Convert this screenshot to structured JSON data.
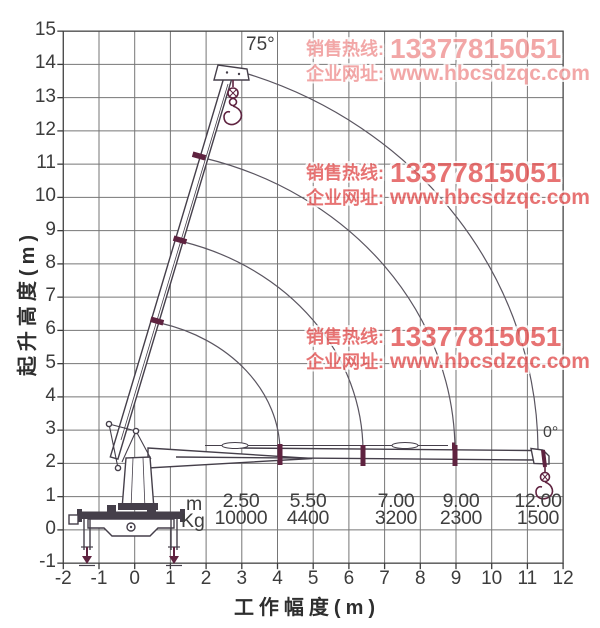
{
  "chart_data": {
    "type": "table",
    "title": "truck-mounted crane lifting capacity chart",
    "xlabel": "工作幅度(m)",
    "ylabel": "起升高度(m)",
    "xlim": [
      -2,
      12
    ],
    "ylim": [
      -1,
      15
    ],
    "x_ticks": [
      -2,
      -1,
      0,
      1,
      2,
      3,
      4,
      5,
      6,
      7,
      8,
      9,
      10,
      11,
      12
    ],
    "y_ticks": [
      -1,
      0,
      1,
      2,
      3,
      4,
      5,
      6,
      7,
      8,
      9,
      10,
      11,
      12,
      13,
      14,
      15
    ],
    "grid": true,
    "boom_angle_max_label": "75°",
    "boom_angle_min_label": "0°",
    "load_table": {
      "row_labels": [
        "m",
        "Kg"
      ],
      "radius_m": [
        "2.50",
        "5.50",
        "7.00",
        "9.00",
        "12.00"
      ],
      "capacity_kg": [
        "10000",
        "4400",
        "3200",
        "2300",
        "1500"
      ]
    }
  },
  "watermark": {
    "hotline_label": "销售热线:",
    "phone": "13377815051",
    "website_label": "企业网址:",
    "website": "www.hbcsdzqc.com",
    "color_light": "#f09494",
    "color_strong": "#e25555"
  }
}
